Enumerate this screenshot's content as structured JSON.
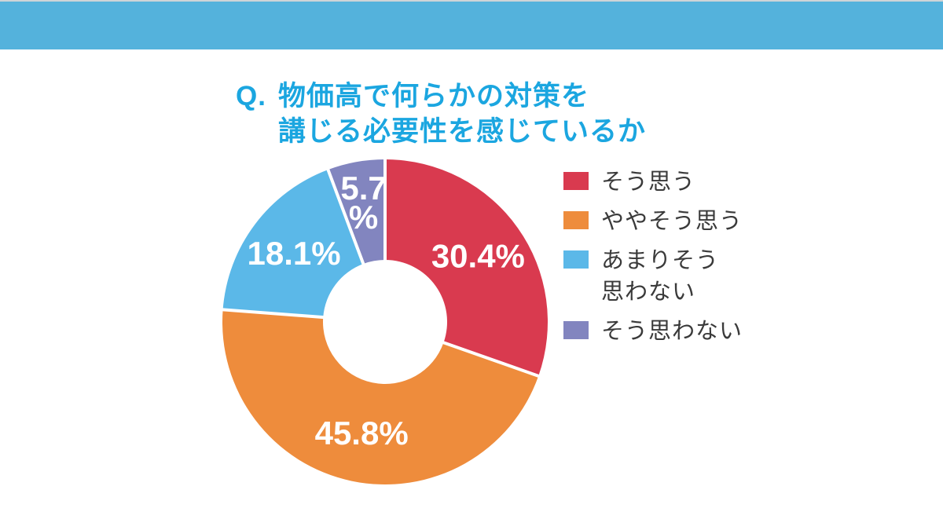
{
  "header": {
    "bar_color": "#54B2DC",
    "hairline_color": "#CED4D7"
  },
  "title": {
    "prefix": "Q.",
    "line1": "物価高で何らかの対策を",
    "line2": "講じる必要性を感じているか",
    "color": "#1BA6E0"
  },
  "chart_data": {
    "type": "pie",
    "subtype": "donut",
    "title": "Q. 物価高で何らかの対策を講じる必要性を感じているか",
    "start_angle_deg": 0,
    "direction": "clockwise",
    "inner_radius_ratio": 0.38,
    "slices": [
      {
        "label": "そう思う",
        "value": 30.4,
        "color": "#D93A4F",
        "data_label_lines": [
          "30.4%"
        ]
      },
      {
        "label": "ややそう思う",
        "value": 45.8,
        "color": "#EE8C3C",
        "data_label_lines": [
          "45.8%"
        ]
      },
      {
        "label": "あまりそう思わない",
        "value": 18.1,
        "color": "#5BB8E8",
        "data_label_lines": [
          "18.1%"
        ]
      },
      {
        "label": "そう思わない",
        "value": 5.7,
        "color": "#8285BF",
        "data_label_lines": [
          "5.7",
          "%"
        ]
      }
    ],
    "data_label_color": "#FFFFFF",
    "gap_color": "#FFFFFF",
    "legend_position": "right"
  },
  "legend": {
    "text_color": "#3A3A3A",
    "items": [
      {
        "line1": "そう思う"
      },
      {
        "line1": "ややそう思う"
      },
      {
        "line1": "あまりそう",
        "line2": "思わない"
      },
      {
        "line1": "そう思わない"
      }
    ]
  }
}
